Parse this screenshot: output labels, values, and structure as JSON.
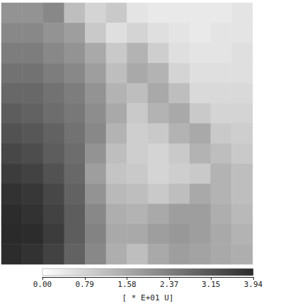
{
  "chart_data": {
    "type": "heatmap",
    "tick_labels": false,
    "cells": [
      [
        2.0,
        2.0,
        2.2,
        1.2,
        0.8,
        1.0,
        0.5,
        0.4,
        0.4,
        0.4,
        0.4,
        0.5
      ],
      [
        2.2,
        2.2,
        2.0,
        1.8,
        1.0,
        0.6,
        0.8,
        0.6,
        0.5,
        0.4,
        0.5,
        0.5
      ],
      [
        2.4,
        2.4,
        2.2,
        2.0,
        1.6,
        1.0,
        1.4,
        0.9,
        0.6,
        0.5,
        0.5,
        0.6
      ],
      [
        2.6,
        2.6,
        2.4,
        2.2,
        1.8,
        1.2,
        1.6,
        1.4,
        0.8,
        0.6,
        0.6,
        0.6
      ],
      [
        2.8,
        2.8,
        2.6,
        2.4,
        2.0,
        1.4,
        1.2,
        1.6,
        1.2,
        0.7,
        0.7,
        0.7
      ],
      [
        3.0,
        2.9,
        2.7,
        2.5,
        2.1,
        1.6,
        1.0,
        1.4,
        1.6,
        1.0,
        0.8,
        0.8
      ],
      [
        3.2,
        3.1,
        2.9,
        2.6,
        2.2,
        1.4,
        0.9,
        1.0,
        1.4,
        1.6,
        1.0,
        0.9
      ],
      [
        3.4,
        3.3,
        3.0,
        2.7,
        2.0,
        1.2,
        0.9,
        0.8,
        1.0,
        1.4,
        1.2,
        1.0
      ],
      [
        3.6,
        3.5,
        3.2,
        2.8,
        1.8,
        1.1,
        1.0,
        0.8,
        0.9,
        1.0,
        1.4,
        1.2
      ],
      [
        3.8,
        3.7,
        3.4,
        2.9,
        2.0,
        1.3,
        1.2,
        1.0,
        1.2,
        1.6,
        1.4,
        1.2
      ],
      [
        3.9,
        3.8,
        3.5,
        3.0,
        2.2,
        1.5,
        1.4,
        1.6,
        1.8,
        1.8,
        1.5,
        1.3
      ],
      [
        3.94,
        3.9,
        3.6,
        3.0,
        2.3,
        1.6,
        1.6,
        1.8,
        1.9,
        1.8,
        1.6,
        1.4
      ],
      [
        3.9,
        3.8,
        3.5,
        2.9,
        2.2,
        1.5,
        1.2,
        1.6,
        1.8,
        1.7,
        1.6,
        1.5
      ]
    ],
    "colorbar": {
      "range": [
        0,
        3.94
      ],
      "ticks": [
        {
          "value": 0,
          "label": "0.00"
        },
        0.79,
        1.58,
        2.37,
        3.15,
        3.94
      ],
      "label": "[ * E+01 U]"
    }
  }
}
